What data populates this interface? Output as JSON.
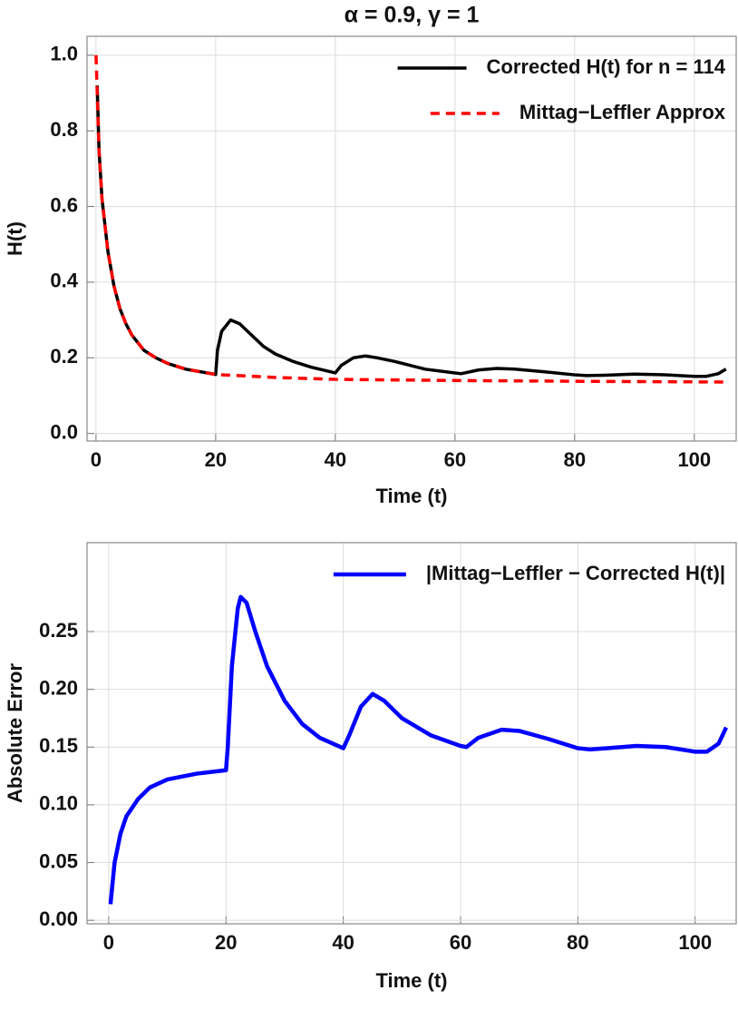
{
  "chart_data": [
    {
      "type": "line",
      "title": "α = 0.9, γ = 1",
      "xlabel": "Time (t)",
      "ylabel": "H(t)",
      "xlim": [
        -1.5,
        107
      ],
      "ylim": [
        -0.02,
        1.05
      ],
      "xticks": [
        0,
        20,
        40,
        60,
        80,
        100
      ],
      "yticks": [
        {
          "value": 0,
          "label": "0.0"
        },
        0.2,
        0.4,
        0.6,
        0.8,
        {
          "value": 1,
          "label": "1.0"
        }
      ],
      "grid": true,
      "legend": "upper right",
      "series": [
        {
          "name": "Corrected H(t) for n = 114",
          "color": "#000000",
          "dashed": false,
          "x": [
            0.2,
            0.5,
            1,
            2,
            3,
            4,
            5,
            6,
            8,
            10,
            12,
            15,
            20,
            20.3,
            21,
            22.5,
            24,
            26,
            28,
            30,
            33,
            36,
            40,
            41,
            43,
            45,
            47,
            50,
            55,
            60,
            61,
            64,
            67,
            70,
            75,
            80,
            82,
            85,
            90,
            95,
            100,
            102,
            104,
            105.3
          ],
          "values": [
            0.92,
            0.75,
            0.62,
            0.48,
            0.39,
            0.33,
            0.29,
            0.26,
            0.22,
            0.2,
            0.185,
            0.17,
            0.156,
            0.22,
            0.27,
            0.3,
            0.29,
            0.26,
            0.23,
            0.21,
            0.19,
            0.175,
            0.16,
            0.18,
            0.2,
            0.205,
            0.2,
            0.19,
            0.17,
            0.16,
            0.158,
            0.168,
            0.172,
            0.17,
            0.163,
            0.155,
            0.153,
            0.154,
            0.157,
            0.155,
            0.151,
            0.151,
            0.158,
            0.17
          ]
        },
        {
          "name": "Mittag−Leffler Approx",
          "color": "#ff0000",
          "dashed": true,
          "x": [
            0,
            0.5,
            1,
            2,
            3,
            4,
            5,
            6,
            8,
            10,
            12,
            15,
            20,
            30,
            40,
            60,
            80,
            105.3
          ],
          "values": [
            1.0,
            0.75,
            0.62,
            0.48,
            0.39,
            0.33,
            0.29,
            0.26,
            0.22,
            0.2,
            0.185,
            0.17,
            0.156,
            0.148,
            0.143,
            0.14,
            0.138,
            0.136
          ]
        }
      ]
    },
    {
      "type": "line",
      "xlabel": "Time (t)",
      "ylabel": "Absolute Error",
      "xlim": [
        -3.7,
        107
      ],
      "ylim": [
        -0.003,
        0.327
      ],
      "xticks": [
        0,
        20,
        40,
        60,
        80,
        100
      ],
      "yticks": [
        {
          "value": 0,
          "label": "0.00"
        },
        {
          "value": 0.05,
          "label": "0.05"
        },
        {
          "value": 0.1,
          "label": "0.10"
        },
        {
          "value": 0.15,
          "label": "0.15"
        },
        {
          "value": 0.2,
          "label": "0.20"
        },
        {
          "value": 0.25,
          "label": "0.25"
        }
      ],
      "grid": true,
      "legend": "upper right",
      "series": [
        {
          "name": "|Mittag−Leffler − Corrected H(t)|",
          "color": "#0000ff",
          "dashed": false,
          "x": [
            0.3,
            1,
            2,
            3,
            5,
            7,
            10,
            15,
            20,
            20.3,
            21,
            22,
            22.5,
            23.5,
            25,
            27,
            30,
            33,
            36,
            40,
            41,
            43,
            45,
            47,
            50,
            55,
            60,
            61,
            63,
            67,
            70,
            75,
            80,
            82,
            85,
            90,
            95,
            100,
            102,
            104,
            105.3
          ],
          "values": [
            0.014,
            0.05,
            0.075,
            0.09,
            0.105,
            0.115,
            0.122,
            0.127,
            0.13,
            0.15,
            0.22,
            0.27,
            0.28,
            0.275,
            0.25,
            0.22,
            0.19,
            0.17,
            0.158,
            0.149,
            0.16,
            0.185,
            0.196,
            0.19,
            0.175,
            0.16,
            0.151,
            0.15,
            0.158,
            0.165,
            0.164,
            0.157,
            0.149,
            0.148,
            0.149,
            0.151,
            0.15,
            0.146,
            0.146,
            0.153,
            0.167
          ]
        }
      ]
    }
  ]
}
